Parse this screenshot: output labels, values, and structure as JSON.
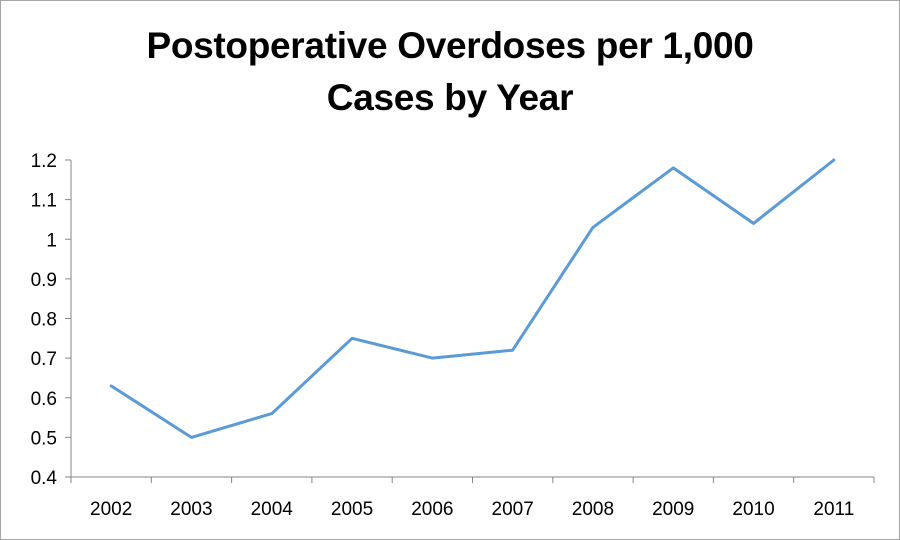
{
  "chart_data": {
    "type": "line",
    "title_lines": [
      "Postoperative Overdoses per 1,000",
      "Cases by Year"
    ],
    "xlabel": "",
    "ylabel": "",
    "categories": [
      "2002",
      "2003",
      "2004",
      "2005",
      "2006",
      "2007",
      "2008",
      "2009",
      "2010",
      "2011"
    ],
    "series": [
      {
        "values": [
          0.63,
          0.5,
          0.56,
          0.75,
          0.7,
          0.72,
          1.03,
          1.18,
          1.04,
          1.2
        ]
      }
    ],
    "ylim": [
      0.4,
      1.2
    ],
    "yticks": [
      "0.4",
      "0.5",
      "0.6",
      "0.7",
      "0.8",
      "0.9",
      "1",
      "1.1",
      "1.2"
    ],
    "grid": false,
    "legend": "none",
    "colors": {
      "line": "#5b9bd5",
      "axis": "#868686"
    }
  }
}
